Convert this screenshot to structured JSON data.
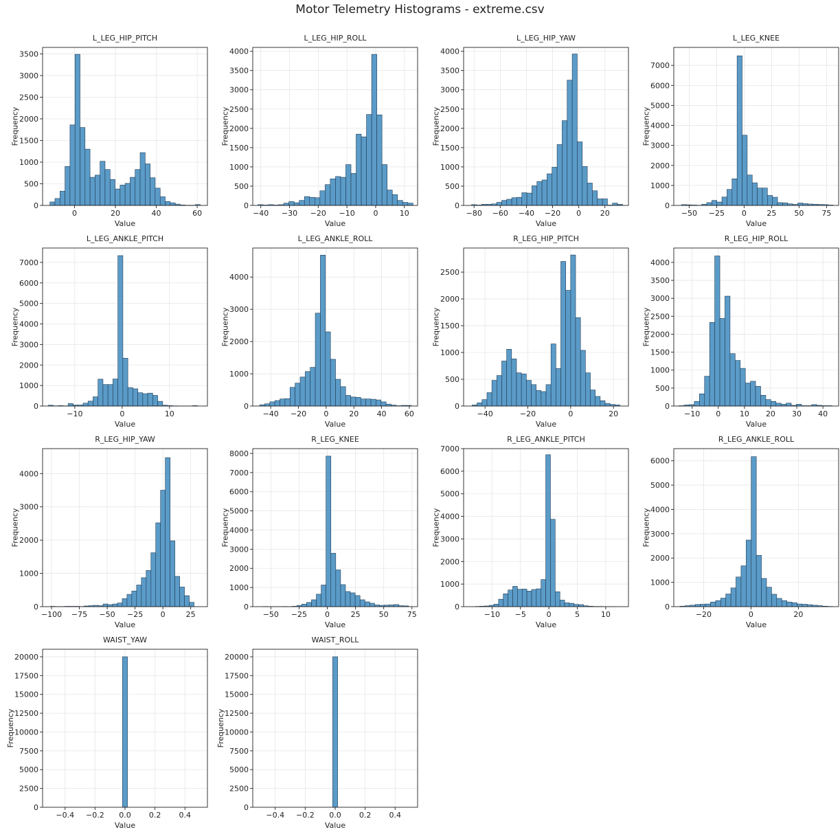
{
  "figure": {
    "title": "Motor Telemetry Histograms - extreme.csv"
  },
  "style": {
    "bar_color": "#5b9bc8",
    "bar_edge": "#1f3a52",
    "grid_color": "#e6e6e6"
  },
  "chart_data": [
    {
      "type": "bar",
      "title": "L_LEG_HIP_PITCH",
      "xlabel": "Value",
      "ylabel": "Frequency",
      "xlim": [
        -15.6,
        65.0
      ],
      "ylim": [
        0,
        3650
      ],
      "bin_start": -12.0,
      "bin_width": 2.45,
      "xticks": [
        0,
        20,
        40,
        60
      ],
      "yticks": [
        0,
        500,
        1000,
        1500,
        2000,
        2500,
        3000,
        3500
      ],
      "values": [
        80,
        160,
        330,
        900,
        1860,
        3490,
        1800,
        1300,
        650,
        700,
        1020,
        830,
        600,
        380,
        470,
        510,
        650,
        830,
        1220,
        960,
        640,
        400,
        200,
        90,
        60,
        30,
        10,
        5,
        5,
        20
      ]
    },
    {
      "type": "bar",
      "title": "L_LEG_HIP_ROLL",
      "xlabel": "Value",
      "ylabel": "Frequency",
      "xlim": [
        -42.8,
        14.6
      ],
      "ylim": [
        0,
        4100
      ],
      "bin_start": -41.0,
      "bin_width": 1.8,
      "xticks": [
        -40,
        -30,
        -20,
        -10,
        0,
        10
      ],
      "yticks": [
        0,
        500,
        1000,
        1500,
        2000,
        2500,
        3000,
        3500,
        4000
      ],
      "values": [
        20,
        10,
        20,
        10,
        20,
        60,
        100,
        70,
        130,
        230,
        210,
        200,
        380,
        540,
        690,
        750,
        730,
        1060,
        830,
        1850,
        1780,
        2360,
        3920,
        2350,
        1060,
        400,
        280,
        130,
        80,
        60
      ]
    },
    {
      "type": "bar",
      "title": "L_LEG_HIP_YAW",
      "xlabel": "Value",
      "ylabel": "Frequency",
      "xlim": [
        -88.0,
        38.0
      ],
      "ylim": [
        0,
        4100
      ],
      "bin_start": -82.0,
      "bin_width": 3.85,
      "xticks": [
        -80,
        -60,
        -40,
        -20,
        0,
        20
      ],
      "yticks": [
        0,
        500,
        1000,
        1500,
        2000,
        2500,
        3000,
        3500,
        4000
      ],
      "values": [
        20,
        10,
        30,
        30,
        40,
        80,
        130,
        160,
        200,
        210,
        330,
        320,
        510,
        620,
        660,
        820,
        990,
        1580,
        2200,
        3250,
        3930,
        1650,
        1010,
        580,
        380,
        170,
        170,
        10,
        60,
        30
      ]
    },
    {
      "type": "bar",
      "title": "L_LEG_KNEE",
      "xlabel": "Value",
      "ylabel": "Frequency",
      "xlim": [
        -64.0,
        86.0
      ],
      "ylim": [
        0,
        7900
      ],
      "bin_start": -57.0,
      "bin_width": 4.6,
      "xticks": [
        -50,
        -25,
        0,
        25,
        50,
        75
      ],
      "yticks": [
        0,
        1000,
        2000,
        3000,
        4000,
        5000,
        6000,
        7000
      ],
      "values": [
        40,
        30,
        20,
        10,
        60,
        140,
        250,
        170,
        420,
        800,
        1330,
        7480,
        3510,
        1520,
        1130,
        870,
        870,
        500,
        410,
        140,
        130,
        80,
        50,
        120,
        90,
        70,
        60,
        50,
        40,
        20
      ]
    },
    {
      "type": "bar",
      "title": "L_LEG_ANKLE_PITCH",
      "xlabel": "Value",
      "ylabel": "Frequency",
      "xlim": [
        -16.8,
        18.0
      ],
      "ylim": [
        0,
        7700
      ],
      "bin_start": -15.6,
      "bin_width": 1.05,
      "xticks": [
        -10,
        0,
        10
      ],
      "yticks": [
        0,
        1000,
        2000,
        3000,
        4000,
        5000,
        6000,
        7000
      ],
      "values": [
        40,
        10,
        20,
        10,
        120,
        50,
        50,
        140,
        240,
        450,
        1310,
        1050,
        1050,
        1320,
        7330,
        2330,
        900,
        840,
        650,
        600,
        630,
        520,
        230,
        40,
        20,
        10,
        5,
        5,
        5,
        20
      ]
    },
    {
      "type": "bar",
      "title": "L_LEG_ANKLE_ROLL",
      "xlabel": "Value",
      "ylabel": "Frequency",
      "xlim": [
        -53.0,
        66.0
      ],
      "ylim": [
        0,
        4900
      ],
      "bin_start": -48.0,
      "bin_width": 3.65,
      "xticks": [
        -40,
        -20,
        0,
        20,
        40,
        60
      ],
      "yticks": [
        0,
        1000,
        2000,
        3000,
        4000
      ],
      "values": [
        40,
        70,
        130,
        170,
        220,
        230,
        580,
        710,
        900,
        1070,
        1200,
        2880,
        4680,
        2300,
        1450,
        830,
        600,
        330,
        280,
        270,
        220,
        220,
        210,
        190,
        130,
        60,
        30,
        10,
        20,
        20
      ]
    },
    {
      "type": "bar",
      "title": "R_LEG_HIP_PITCH",
      "xlabel": "Value",
      "ylabel": "Frequency",
      "xlim": [
        -50.0,
        27.0
      ],
      "ylim": [
        0,
        2950
      ],
      "bin_start": -46.0,
      "bin_width": 2.3,
      "xticks": [
        -40,
        -20,
        0,
        20
      ],
      "yticks": [
        0,
        500,
        1000,
        1500,
        2000,
        2500
      ],
      "values": [
        20,
        60,
        120,
        250,
        480,
        570,
        840,
        1060,
        880,
        620,
        600,
        480,
        400,
        290,
        270,
        400,
        1160,
        700,
        2700,
        2160,
        2820,
        1650,
        1040,
        620,
        300,
        180,
        100,
        50,
        30,
        20
      ]
    },
    {
      "type": "bar",
      "title": "R_LEG_HIP_ROLL",
      "xlabel": "Value",
      "ylabel": "Frequency",
      "xlim": [
        -17.0,
        46.0
      ],
      "ylim": [
        0,
        4400
      ],
      "bin_start": -15.0,
      "bin_width": 1.95,
      "xticks": [
        -10,
        0,
        10,
        20,
        30,
        40
      ],
      "yticks": [
        0,
        500,
        1000,
        1500,
        2000,
        2500,
        3000,
        3500,
        4000
      ],
      "values": [
        10,
        30,
        40,
        130,
        340,
        830,
        2330,
        4180,
        2440,
        3060,
        1460,
        1270,
        1050,
        640,
        690,
        550,
        300,
        180,
        130,
        80,
        50,
        80,
        20,
        50,
        10,
        10,
        40,
        20,
        10,
        10
      ]
    },
    {
      "type": "bar",
      "title": "R_LEG_HIP_YAW",
      "xlabel": "Value",
      "ylabel": "Frequency",
      "xlim": [
        -108.0,
        40.0
      ],
      "ylim": [
        0,
        4750
      ],
      "bin_start": -101.0,
      "bin_width": 4.3,
      "xticks": [
        -100,
        -75,
        -50,
        -25,
        0,
        25
      ],
      "yticks": [
        0,
        1000,
        2000,
        3000,
        4000
      ],
      "values": [
        10,
        5,
        5,
        10,
        10,
        10,
        5,
        20,
        30,
        40,
        30,
        80,
        60,
        80,
        110,
        240,
        370,
        470,
        650,
        870,
        1090,
        1620,
        2520,
        3500,
        4480,
        1980,
        910,
        590,
        330,
        130
      ]
    },
    {
      "type": "bar",
      "title": "R_LEG_KNEE",
      "xlabel": "Value",
      "ylabel": "Frequency",
      "xlim": [
        -66.0,
        80.0
      ],
      "ylim": [
        0,
        8250
      ],
      "bin_start": -57.0,
      "bin_width": 4.3,
      "xticks": [
        -50,
        -25,
        0,
        25,
        50,
        75
      ],
      "yticks": [
        0,
        1000,
        2000,
        3000,
        4000,
        5000,
        6000,
        7000,
        8000
      ],
      "values": [
        10,
        5,
        5,
        5,
        10,
        5,
        20,
        60,
        130,
        220,
        360,
        650,
        1130,
        7860,
        2790,
        1920,
        1150,
        790,
        720,
        580,
        360,
        250,
        180,
        90,
        70,
        80,
        90,
        110,
        50,
        40
      ]
    },
    {
      "type": "bar",
      "title": "R_LEG_ANKLE_PITCH",
      "xlabel": "Value",
      "ylabel": "Frequency",
      "xlim": [
        -15.0,
        14.0
      ],
      "ylim": [
        0,
        7000
      ],
      "bin_start": -13.0,
      "bin_width": 0.83,
      "xticks": [
        -10,
        -5,
        0,
        5,
        10
      ],
      "yticks": [
        0,
        1000,
        2000,
        3000,
        4000,
        5000,
        6000,
        7000
      ],
      "values": [
        10,
        20,
        30,
        60,
        110,
        330,
        570,
        740,
        900,
        770,
        780,
        690,
        760,
        790,
        1200,
        6730,
        3870,
        660,
        290,
        170,
        150,
        100,
        90,
        40,
        20,
        10,
        10,
        5,
        5,
        5
      ]
    },
    {
      "type": "bar",
      "title": "R_LEG_ANKLE_ROLL",
      "xlabel": "Value",
      "ylabel": "Frequency",
      "xlim": [
        -32.6,
        37.0
      ],
      "ylim": [
        0,
        6500
      ],
      "bin_start": -30.0,
      "bin_width": 2.15,
      "xticks": [
        -20,
        0,
        20
      ],
      "yticks": [
        0,
        1000,
        2000,
        3000,
        4000,
        5000,
        6000
      ],
      "values": [
        20,
        40,
        60,
        90,
        100,
        110,
        190,
        250,
        350,
        520,
        770,
        1220,
        1680,
        2740,
        6170,
        2110,
        1160,
        800,
        510,
        340,
        250,
        190,
        160,
        110,
        100,
        80,
        60,
        40,
        20,
        10
      ]
    },
    {
      "type": "bar",
      "title": "WAIST_YAW",
      "xlabel": "Value",
      "ylabel": "Frequency",
      "xlim": [
        -0.55,
        0.55
      ],
      "ylim": [
        0,
        21000
      ],
      "bin_start": -0.0167,
      "bin_width": 0.0333,
      "xticks": [
        -0.4,
        -0.2,
        0.0,
        0.2,
        0.4
      ],
      "yticks": [
        0,
        2500,
        5000,
        7500,
        10000,
        12500,
        15000,
        17500,
        20000
      ],
      "xtick_labels": [
        "−0.4",
        "−0.2",
        "0.0",
        "0.2",
        "0.4"
      ],
      "values": [
        20000
      ]
    },
    {
      "type": "bar",
      "title": "WAIST_ROLL",
      "xlabel": "Value",
      "ylabel": "Frequency",
      "xlim": [
        -0.55,
        0.55
      ],
      "ylim": [
        0,
        21000
      ],
      "bin_start": -0.0167,
      "bin_width": 0.0333,
      "xticks": [
        -0.4,
        -0.2,
        0.0,
        0.2,
        0.4
      ],
      "yticks": [
        0,
        2500,
        5000,
        7500,
        10000,
        12500,
        15000,
        17500,
        20000
      ],
      "xtick_labels": [
        "−0.4",
        "−0.2",
        "0.0",
        "0.2",
        "0.4"
      ],
      "values": [
        20000
      ]
    }
  ]
}
